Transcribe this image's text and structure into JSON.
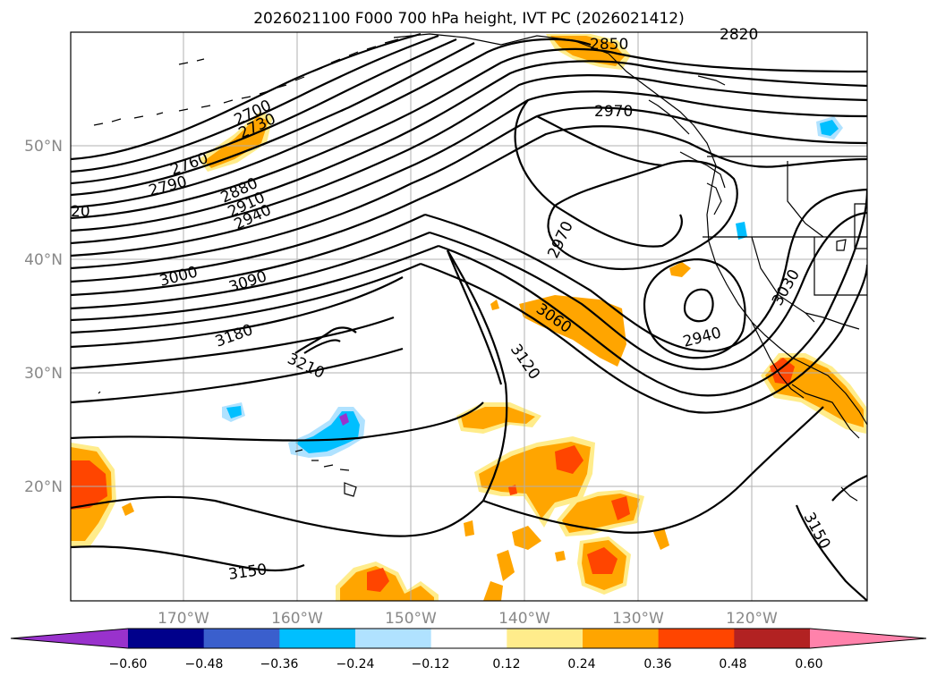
{
  "title": "2026021100 F000 700 hPa height, IVT PC (2026021412)",
  "lat_labels": [
    "50°N",
    "40°N",
    "30°N",
    "20°N"
  ],
  "lon_labels": [
    "170°W",
    "160°W",
    "150°W",
    "140°W",
    "130°W",
    "120°W"
  ],
  "colorbar": {
    "ticks": [
      "−0.60",
      "−0.48",
      "−0.36",
      "−0.24",
      "−0.12",
      "0.12",
      "0.24",
      "0.36",
      "0.48",
      "0.60"
    ],
    "colors": [
      "#9932cc",
      "#00008b",
      "#3a5fcd",
      "#00bfff",
      "#b0e2ff",
      "#ffffff",
      "#ffec8b",
      "#ffa500",
      "#ff4500",
      "#b22222",
      "#ff82ab"
    ]
  },
  "contour_labels": [
    {
      "text": "2850"
    },
    {
      "text": "2820"
    },
    {
      "text": "2970"
    },
    {
      "text": "2700"
    },
    {
      "text": "2730"
    },
    {
      "text": "2760"
    },
    {
      "text": "2790"
    },
    {
      "text": "2880"
    },
    {
      "text": "2910"
    },
    {
      "text": "2940"
    },
    {
      "text": "20"
    },
    {
      "text": "3000"
    },
    {
      "text": "3090"
    },
    {
      "text": "2970"
    },
    {
      "text": "3060"
    },
    {
      "text": "3180"
    },
    {
      "text": "3210"
    },
    {
      "text": "3120"
    },
    {
      "text": "2940"
    },
    {
      "text": "3030"
    },
    {
      "text": "3150"
    },
    {
      "text": "3150"
    }
  ]
}
